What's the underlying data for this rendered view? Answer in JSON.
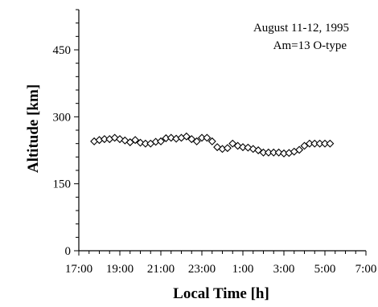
{
  "chart_data": {
    "type": "scatter",
    "xlabel": "Local Time [h]",
    "ylabel": "Altitude [km]",
    "annotation_lines": [
      "August  11-12, 1995",
      "Am=13     O-type"
    ],
    "legend_position": "top-right",
    "grid": false,
    "xlim": [
      17,
      31
    ],
    "ylim": [
      0,
      540
    ],
    "x_ticks": [
      17,
      19,
      21,
      23,
      25,
      27,
      29,
      31
    ],
    "x_tick_labels": [
      "17:00",
      "19:00",
      "21:00",
      "23:00",
      "1:00",
      "3:00",
      "5:00",
      "7:00"
    ],
    "y_ticks": [
      0,
      150,
      300,
      450
    ],
    "y_tick_labels": [
      "0",
      "150",
      "300",
      "450"
    ],
    "marker": "open-diamond",
    "x": [
      17.75,
      18.0,
      18.25,
      18.5,
      18.75,
      19.0,
      19.25,
      19.5,
      19.75,
      20.0,
      20.25,
      20.5,
      20.75,
      21.0,
      21.25,
      21.5,
      21.75,
      22.0,
      22.25,
      22.5,
      22.75,
      23.0,
      23.25,
      23.5,
      23.75,
      24.0,
      24.25,
      24.5,
      24.75,
      25.0,
      25.25,
      25.5,
      25.75,
      26.0,
      26.25,
      26.5,
      26.75,
      27.0,
      27.25,
      27.5,
      27.75,
      28.0,
      28.25,
      28.5,
      28.75,
      29.0,
      29.25
    ],
    "y": [
      245,
      248,
      250,
      250,
      253,
      250,
      247,
      243,
      248,
      242,
      240,
      240,
      244,
      245,
      252,
      253,
      251,
      253,
      256,
      250,
      245,
      253,
      253,
      245,
      232,
      228,
      230,
      240,
      235,
      232,
      231,
      228,
      225,
      220,
      220,
      220,
      220,
      218,
      219,
      222,
      226,
      235,
      240,
      240,
      240,
      240,
      240
    ]
  }
}
